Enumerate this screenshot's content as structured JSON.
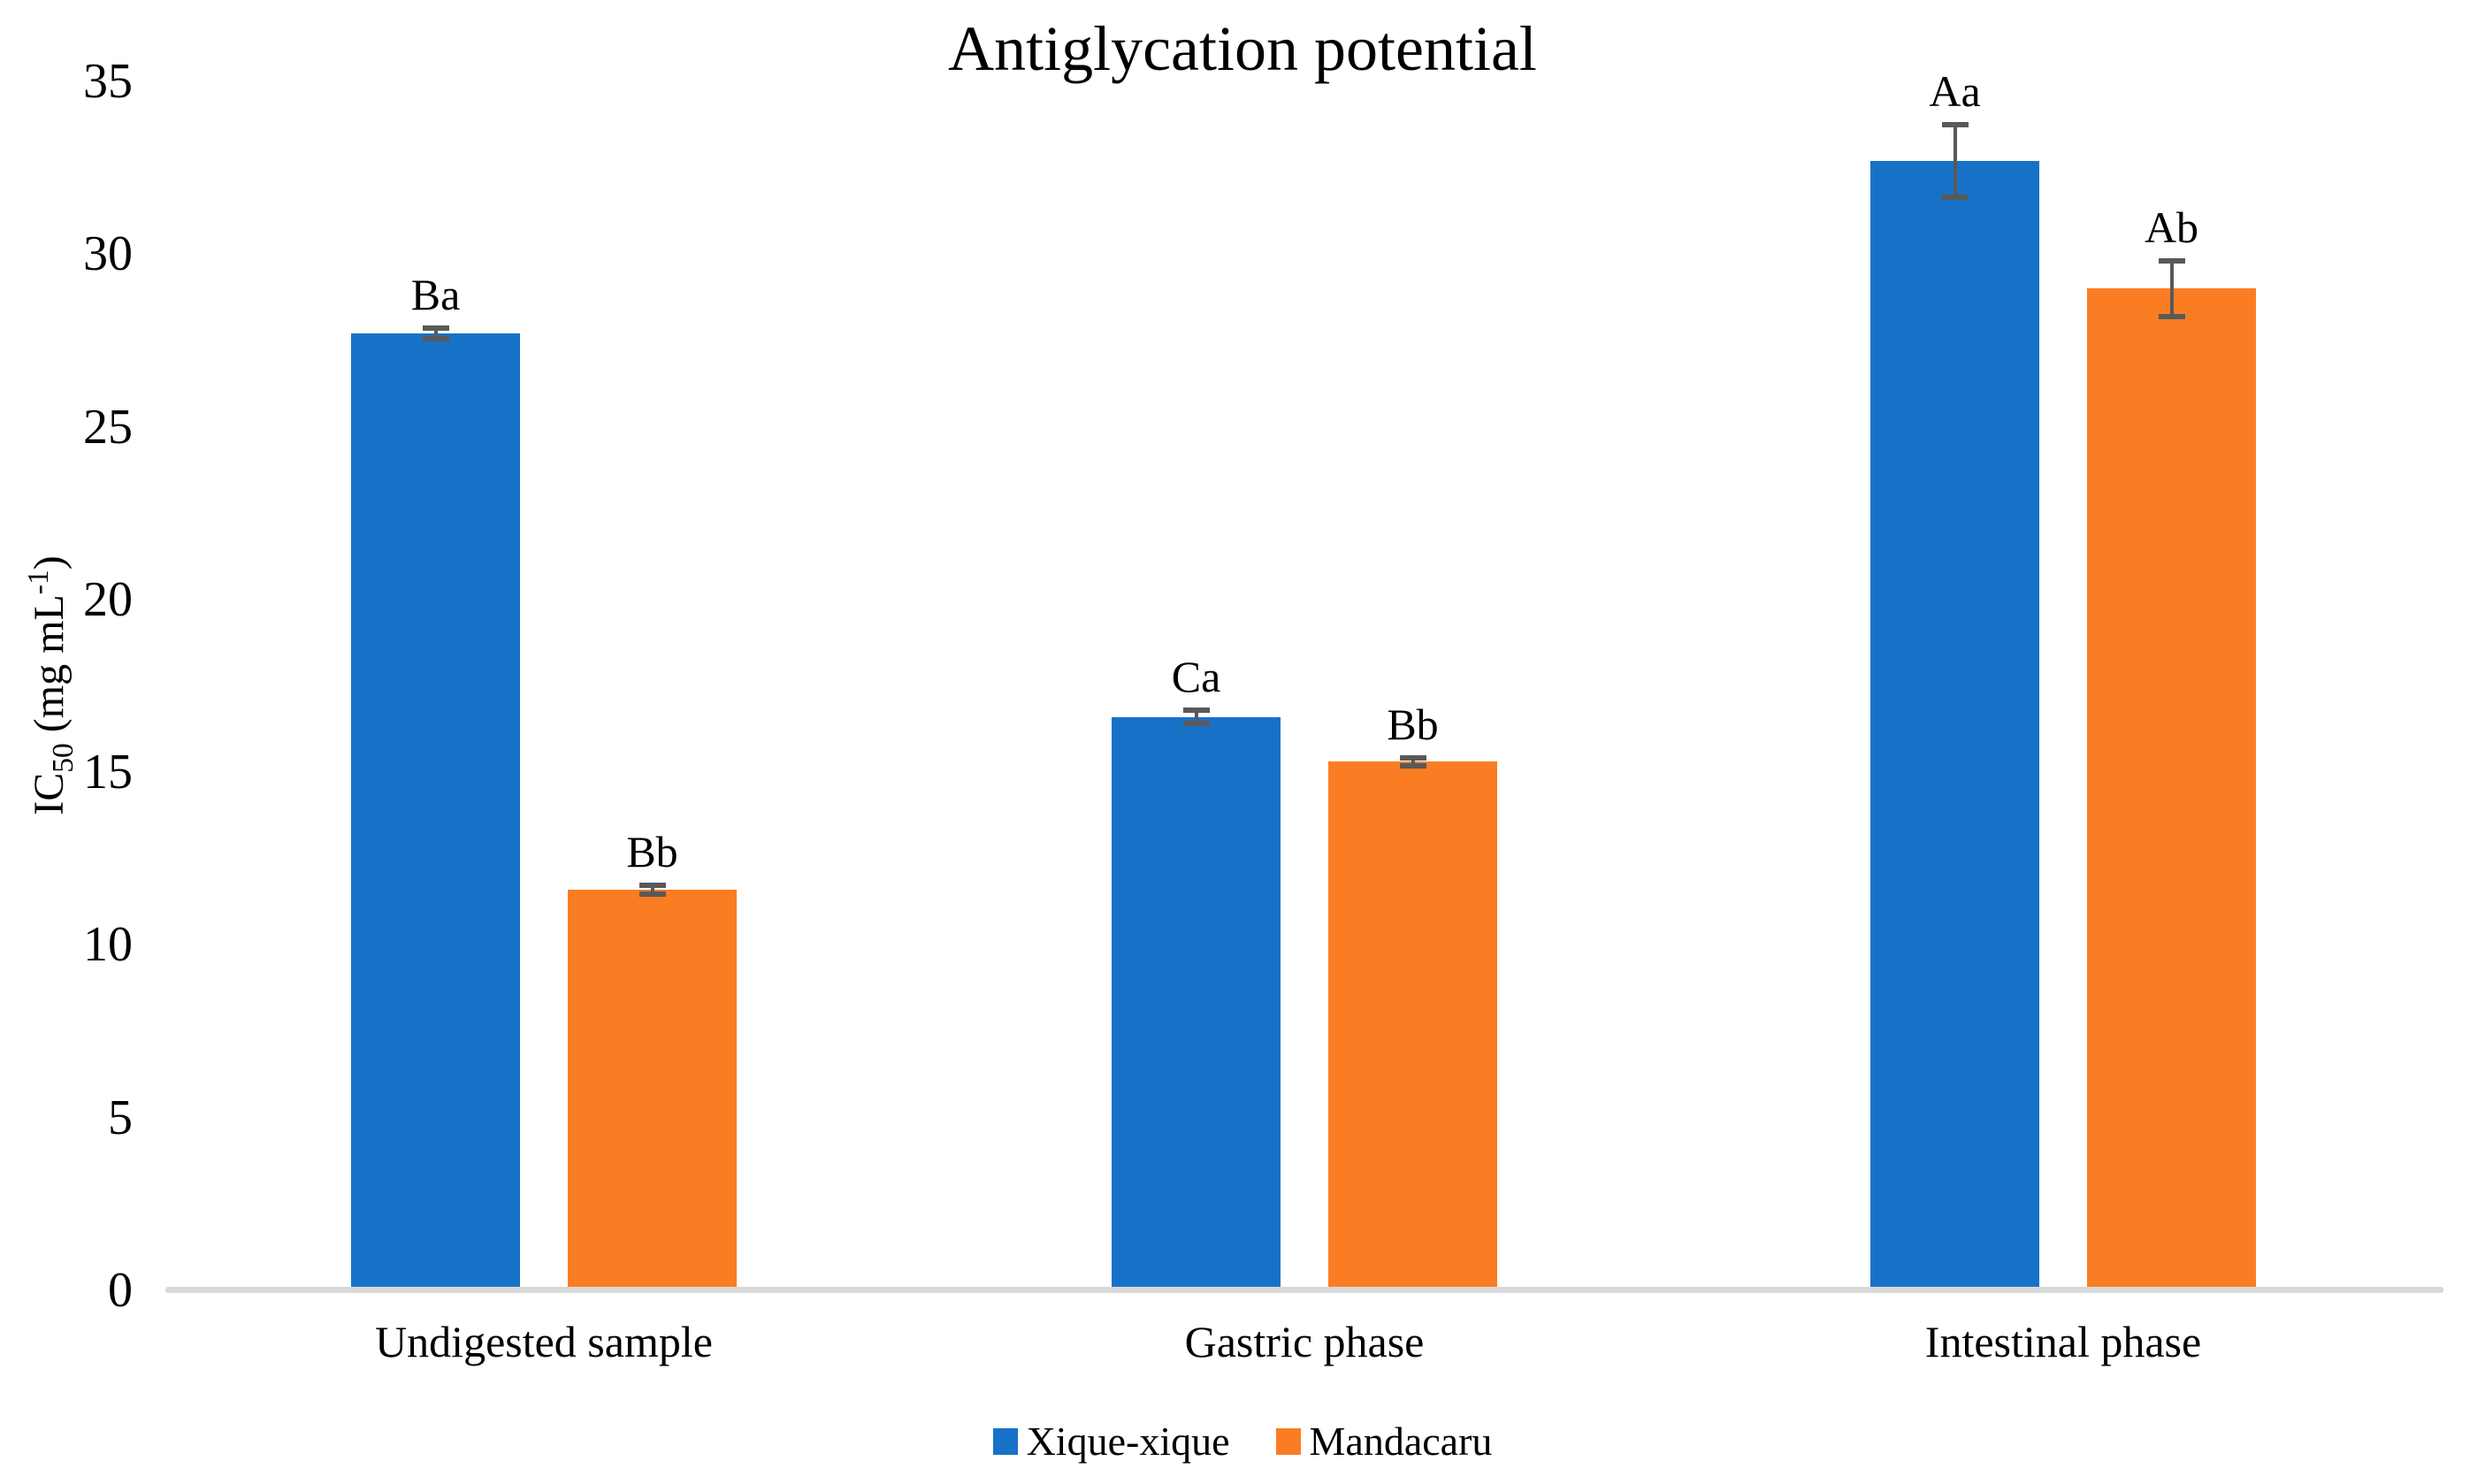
{
  "chart_data": {
    "type": "bar",
    "title": "Antiglycation potential",
    "ylabel": "IC50 (mg mL-1)",
    "ylabel_parts": {
      "prefix": "IC",
      "sub": "50",
      "mid": " (mg mL",
      "sup": "-1",
      "suffix": ")"
    },
    "xlabel": "",
    "categories": [
      "Undigested sample",
      "Gastric phase",
      "Intestinal phase"
    ],
    "series": [
      {
        "name": "Xique-xique",
        "color": "#1772C7",
        "values": [
          27.7,
          16.6,
          32.7
        ],
        "errors": [
          0.15,
          0.2,
          1.05
        ],
        "sig_labels": [
          "Ba",
          "Ca",
          "Aa"
        ]
      },
      {
        "name": "Mandacaru",
        "color": "#FB7D23",
        "values": [
          11.6,
          15.3,
          29.0
        ],
        "errors": [
          0.12,
          0.12,
          0.8
        ],
        "sig_labels": [
          "Bb",
          "Bb",
          "Ab"
        ]
      }
    ],
    "ylim": [
      0,
      35
    ],
    "yticks": [
      0,
      5,
      10,
      15,
      20,
      25,
      30,
      35
    ],
    "grid": "off",
    "legend_position": "bottom",
    "error_bar_color": "#595959",
    "axis_line_color": "#D9D9D9",
    "background_color": "#FFFFFF"
  }
}
